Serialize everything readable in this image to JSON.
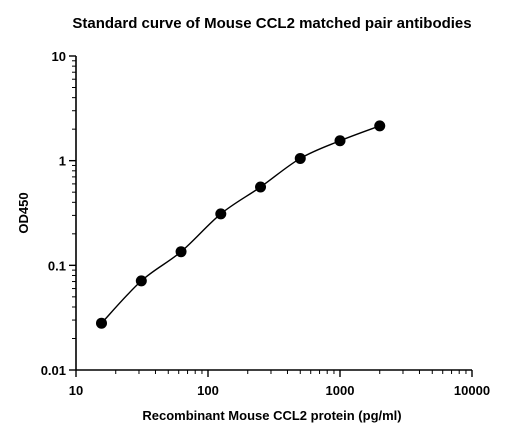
{
  "chart_data": {
    "type": "scatter",
    "title": "Standard curve of Mouse CCL2 matched pair antibodies",
    "xlabel": "Recombinant Mouse CCL2 protein (pg/ml)",
    "ylabel": "OD450",
    "xscale": "log",
    "yscale": "log",
    "xlim": [
      10,
      10000
    ],
    "ylim": [
      0.01,
      10
    ],
    "x_ticks": [
      "10",
      "100",
      "1000",
      "10000"
    ],
    "y_ticks": [
      "0.01",
      "0.1",
      "1",
      "10"
    ],
    "grid": false,
    "legend": "none",
    "marker_color": "#000000",
    "fit_line": true,
    "series": [
      {
        "x": [
          15.6,
          31.25,
          62.5,
          125,
          250,
          500,
          1000,
          2000
        ],
        "y": [
          0.028,
          0.071,
          0.135,
          0.31,
          0.56,
          1.05,
          1.55,
          2.15
        ]
      }
    ]
  }
}
